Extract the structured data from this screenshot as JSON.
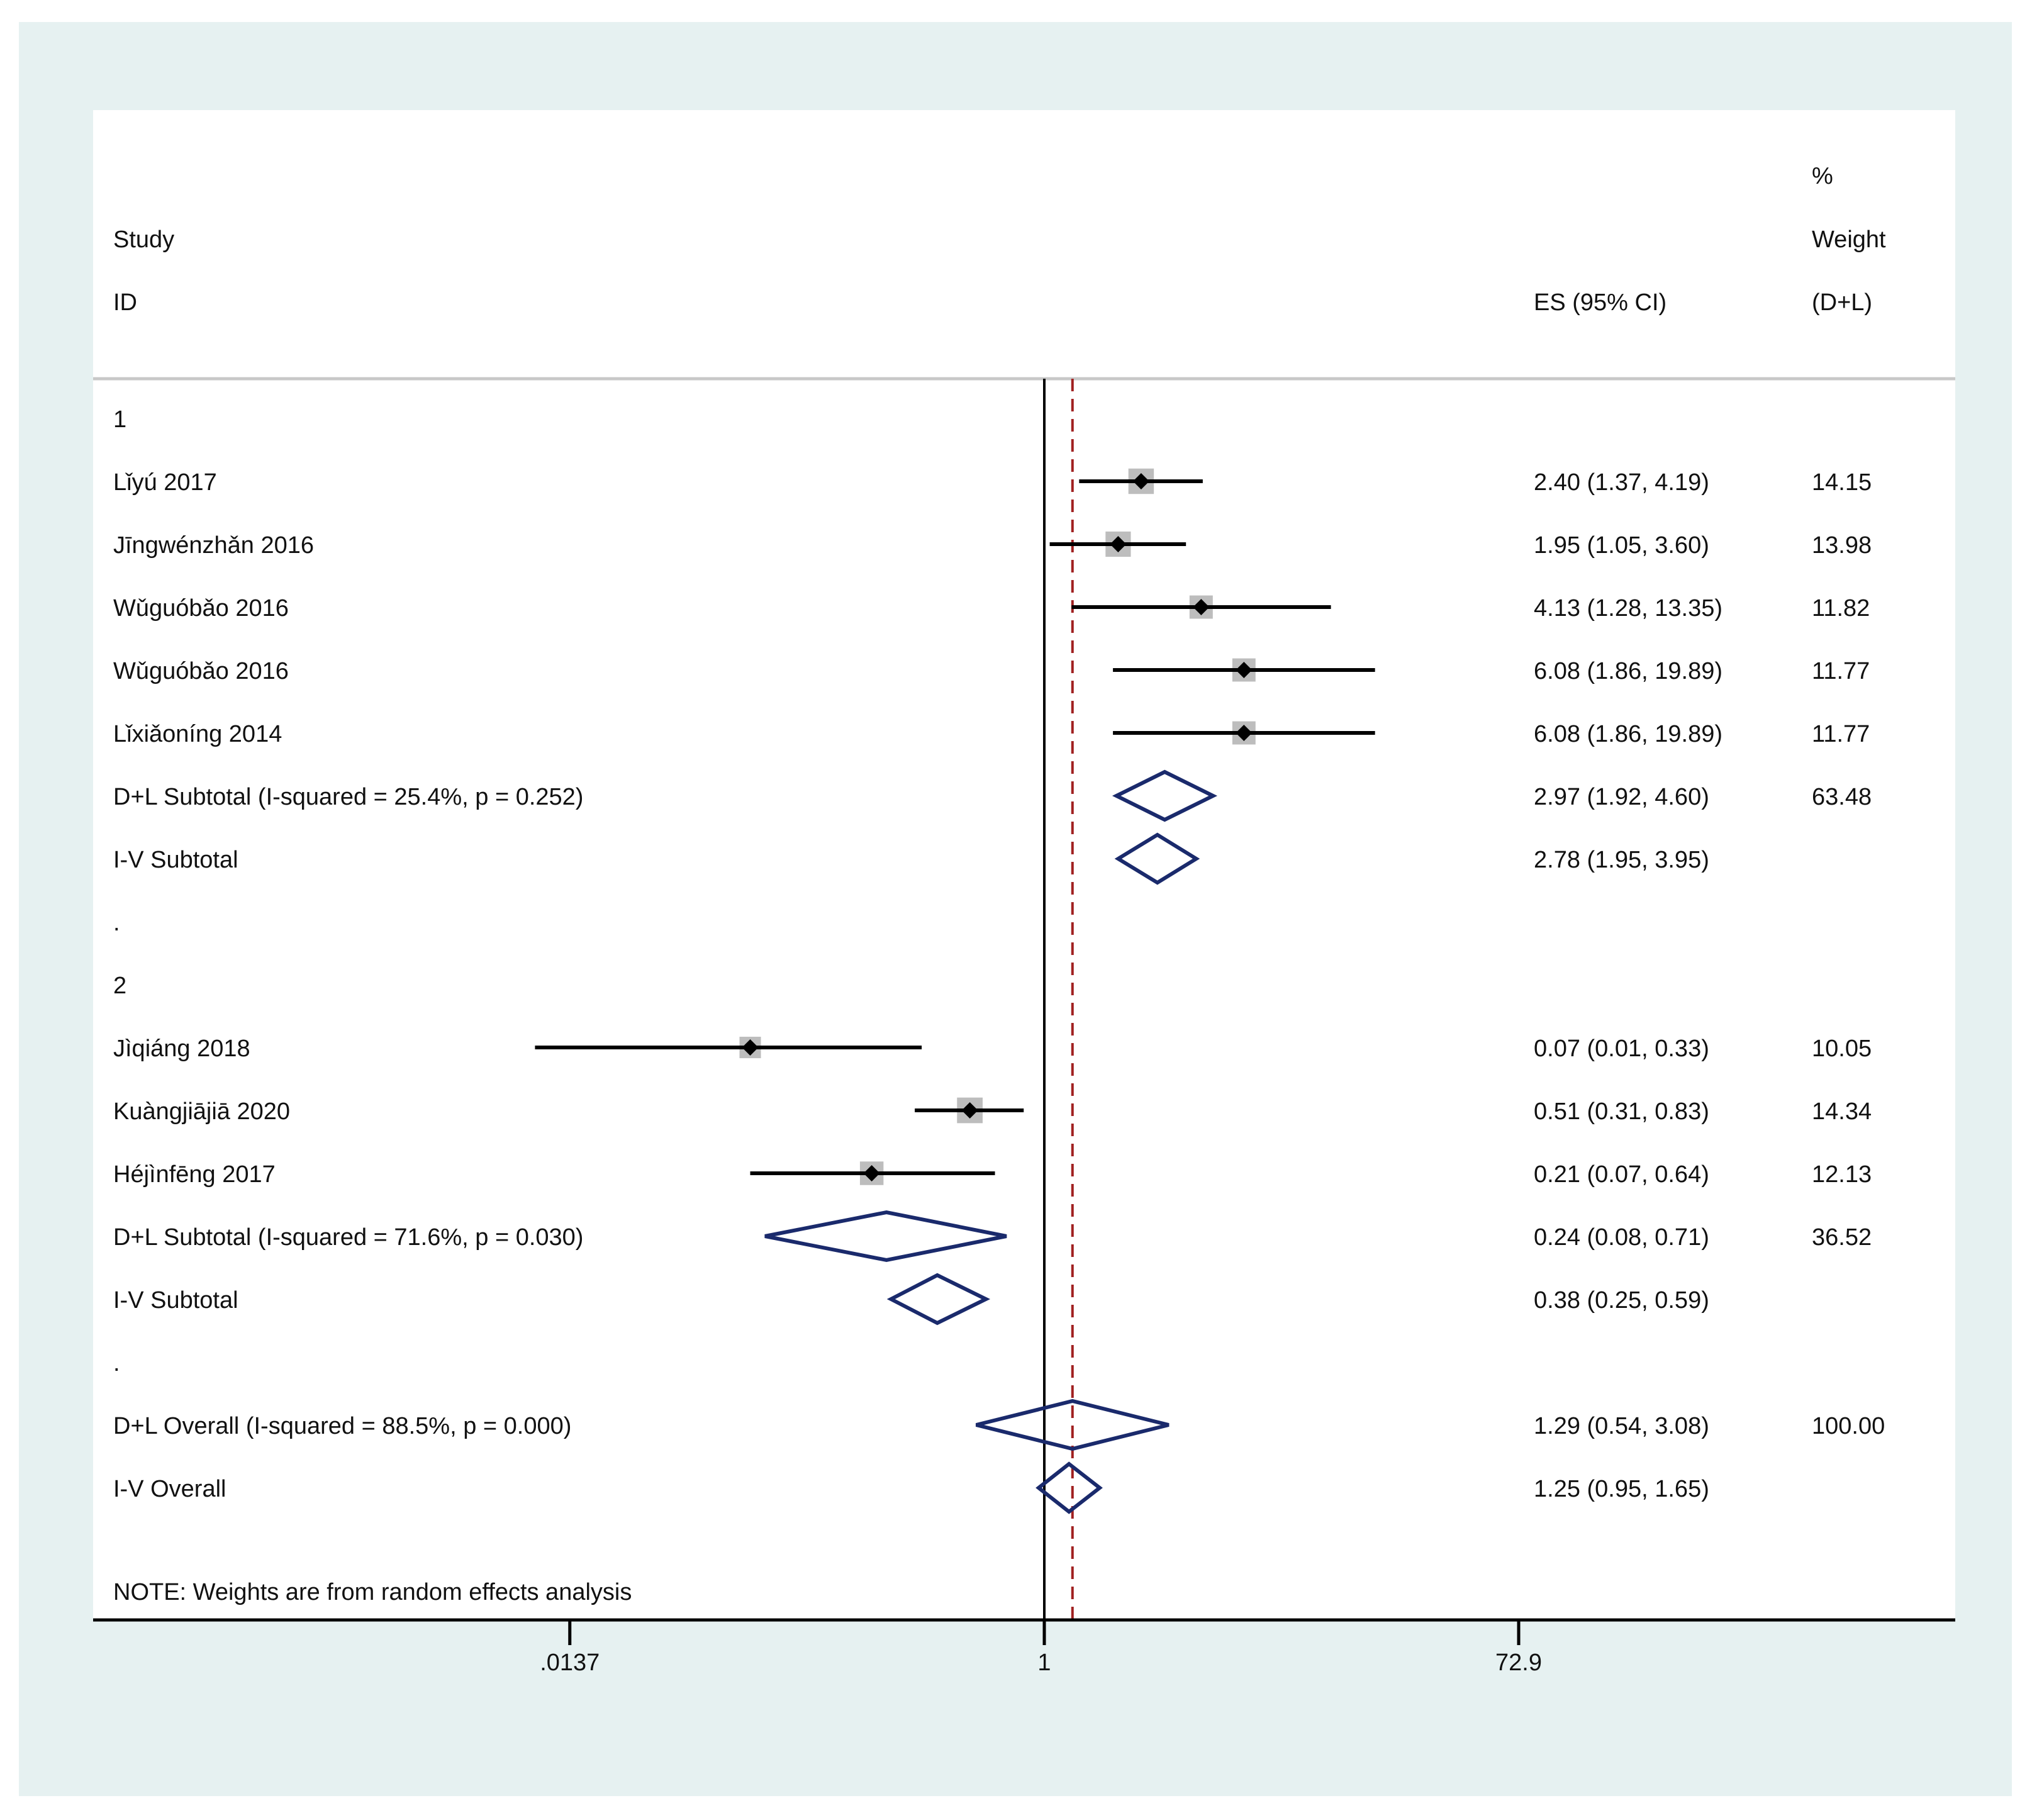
{
  "chart_data": {
    "type": "forest",
    "scale": "log",
    "xticks": [
      {
        "value": 0.0137,
        "label": ".0137"
      },
      {
        "value": 1,
        "label": "1"
      },
      {
        "value": 72.9,
        "label": "72.9"
      }
    ],
    "null_line": 1,
    "overall_line": 1.29,
    "headers": {
      "pct": "%",
      "study": "Study",
      "weight": "Weight",
      "id": "ID",
      "es": "ES (95% CI)",
      "dl": "(D+L)"
    },
    "rows": [
      {
        "kind": "group",
        "label": "1"
      },
      {
        "kind": "study",
        "label": "Lǐyú 2017",
        "es": 2.4,
        "lo": 1.37,
        "hi": 4.19,
        "es_text": "2.40 (1.37, 4.19)",
        "weight": "14.15"
      },
      {
        "kind": "study",
        "label": "Jīngwénzhǎn 2016",
        "es": 1.95,
        "lo": 1.05,
        "hi": 3.6,
        "es_text": "1.95 (1.05, 3.60)",
        "weight": "13.98"
      },
      {
        "kind": "study",
        "label": "Wǔguóbǎo 2016",
        "es": 4.13,
        "lo": 1.28,
        "hi": 13.35,
        "es_text": "4.13 (1.28, 13.35)",
        "weight": "11.82"
      },
      {
        "kind": "study",
        "label": "Wǔguóbǎo 2016",
        "es": 6.08,
        "lo": 1.86,
        "hi": 19.89,
        "es_text": "6.08 (1.86, 19.89)",
        "weight": "11.77"
      },
      {
        "kind": "study",
        "label": "Lǐxiǎoníng 2014",
        "es": 6.08,
        "lo": 1.86,
        "hi": 19.89,
        "es_text": "6.08 (1.86, 19.89)",
        "weight": "11.77"
      },
      {
        "kind": "diamond",
        "label": "D+L Subtotal  (I-squared = 25.4%, p = 0.252)",
        "es": 2.97,
        "lo": 1.92,
        "hi": 4.6,
        "es_text": "2.97 (1.92, 4.60)",
        "weight": "63.48"
      },
      {
        "kind": "diamond",
        "label": "I-V Subtotal",
        "es": 2.78,
        "lo": 1.95,
        "hi": 3.95,
        "es_text": "2.78 (1.95, 3.95)",
        "weight": ""
      },
      {
        "kind": "spacer",
        "label": "."
      },
      {
        "kind": "group",
        "label": "2"
      },
      {
        "kind": "study",
        "label": "Jìqiáng 2018",
        "es": 0.07,
        "lo": 0.01,
        "hi": 0.33,
        "es_text": "0.07 (0.01, 0.33)",
        "weight": "10.05"
      },
      {
        "kind": "study",
        "label": "Kuàngjiājiā 2020",
        "es": 0.51,
        "lo": 0.31,
        "hi": 0.83,
        "es_text": "0.51 (0.31, 0.83)",
        "weight": "14.34"
      },
      {
        "kind": "study",
        "label": "Héjìnfēng 2017",
        "es": 0.21,
        "lo": 0.07,
        "hi": 0.64,
        "es_text": "0.21 (0.07, 0.64)",
        "weight": "12.13"
      },
      {
        "kind": "diamond",
        "label": "D+L Subtotal  (I-squared = 71.6%, p = 0.030)",
        "es": 0.24,
        "lo": 0.08,
        "hi": 0.71,
        "es_text": "0.24 (0.08, 0.71)",
        "weight": "36.52"
      },
      {
        "kind": "diamond",
        "label": "I-V Subtotal",
        "es": 0.38,
        "lo": 0.25,
        "hi": 0.59,
        "es_text": "0.38 (0.25, 0.59)",
        "weight": ""
      },
      {
        "kind": "spacer",
        "label": "."
      },
      {
        "kind": "diamond",
        "label": "D+L Overall  (I-squared = 88.5%, p = 0.000)",
        "es": 1.29,
        "lo": 0.54,
        "hi": 3.08,
        "es_text": "1.29 (0.54, 3.08)",
        "weight": "100.00"
      },
      {
        "kind": "diamond",
        "label": "I-V Overall",
        "es": 1.25,
        "lo": 0.95,
        "hi": 1.65,
        "es_text": "1.25 (0.95, 1.65)",
        "weight": ""
      }
    ],
    "note": "NOTE: Weights are from random effects analysis"
  },
  "colors": {
    "frame_bg": "#e6f1f1",
    "plot_bg": "#ffffff",
    "line": "#000000",
    "diamond": "#1a2a6c",
    "weight_box": "#bdbdbd",
    "ref_line": "#a02020",
    "header_sep": "#c8c8c8"
  }
}
